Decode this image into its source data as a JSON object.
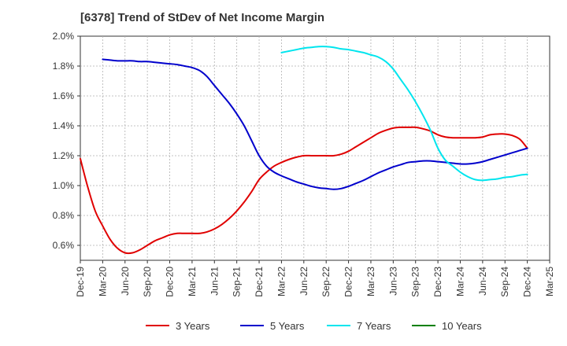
{
  "chart_data": {
    "type": "line",
    "title": "[6378]  Trend of StDev of Net Income Margin",
    "xlabel": "",
    "ylabel": "",
    "x_ticks": [
      "Dec-19",
      "Mar-20",
      "Jun-20",
      "Sep-20",
      "Dec-20",
      "Mar-21",
      "Jun-21",
      "Sep-21",
      "Dec-21",
      "Mar-22",
      "Jun-22",
      "Sep-22",
      "Dec-22",
      "Mar-23",
      "Jun-23",
      "Sep-23",
      "Dec-23",
      "Mar-24",
      "Jun-24",
      "Sep-24",
      "Dec-24",
      "Mar-25"
    ],
    "y_ticks": [
      "0.6%",
      "0.8%",
      "1.0%",
      "1.2%",
      "1.4%",
      "1.6%",
      "1.8%",
      "2.0%"
    ],
    "y_tick_values": [
      0.6,
      0.8,
      1.0,
      1.2,
      1.4,
      1.6,
      1.8,
      2.0
    ],
    "ylim": [
      0.5,
      2.0
    ],
    "grid": true,
    "legend_position": "bottom",
    "series": [
      {
        "name": "3 Years",
        "color": "#e00000",
        "x": [
          "Dec-19",
          "Jan-20",
          "Feb-20",
          "Mar-20",
          "Apr-20",
          "May-20",
          "Jun-20",
          "Jul-20",
          "Aug-20",
          "Sep-20",
          "Oct-20",
          "Nov-20",
          "Dec-20",
          "Jan-21",
          "Feb-21",
          "Mar-21",
          "Apr-21",
          "May-21",
          "Jun-21",
          "Jul-21",
          "Aug-21",
          "Sep-21",
          "Oct-21",
          "Nov-21",
          "Dec-21",
          "Jan-22",
          "Feb-22",
          "Mar-22",
          "Apr-22",
          "May-22",
          "Jun-22",
          "Jul-22",
          "Aug-22",
          "Sep-22",
          "Oct-22",
          "Nov-22",
          "Dec-22",
          "Jan-23",
          "Feb-23",
          "Mar-23",
          "Apr-23",
          "May-23",
          "Jun-23",
          "Jul-23",
          "Aug-23",
          "Sep-23",
          "Oct-23",
          "Nov-23",
          "Dec-23",
          "Jan-24",
          "Feb-24",
          "Mar-24",
          "Apr-24",
          "May-24",
          "Jun-24",
          "Jul-24",
          "Aug-24",
          "Sep-24",
          "Oct-24",
          "Nov-24",
          "Dec-24"
        ],
        "values": [
          1.18,
          0.99,
          0.83,
          0.73,
          0.64,
          0.58,
          0.55,
          0.55,
          0.57,
          0.6,
          0.63,
          0.65,
          0.67,
          0.68,
          0.68,
          0.68,
          0.68,
          0.69,
          0.71,
          0.74,
          0.78,
          0.83,
          0.89,
          0.96,
          1.04,
          1.09,
          1.13,
          1.155,
          1.175,
          1.19,
          1.2,
          1.2,
          1.2,
          1.2,
          1.2,
          1.21,
          1.23,
          1.26,
          1.29,
          1.32,
          1.35,
          1.37,
          1.385,
          1.39,
          1.39,
          1.39,
          1.38,
          1.365,
          1.34,
          1.325,
          1.32,
          1.32,
          1.32,
          1.32,
          1.325,
          1.34,
          1.345,
          1.345,
          1.335,
          1.31,
          1.25
        ]
      },
      {
        "name": "5 Years",
        "color": "#0000cc",
        "x": [
          "Mar-20",
          "Apr-20",
          "May-20",
          "Jun-20",
          "Jul-20",
          "Aug-20",
          "Sep-20",
          "Oct-20",
          "Nov-20",
          "Dec-20",
          "Jan-21",
          "Feb-21",
          "Mar-21",
          "Apr-21",
          "May-21",
          "Jun-21",
          "Jul-21",
          "Aug-21",
          "Sep-21",
          "Oct-21",
          "Nov-21",
          "Dec-21",
          "Jan-22",
          "Feb-22",
          "Mar-22",
          "Apr-22",
          "May-22",
          "Jun-22",
          "Jul-22",
          "Aug-22",
          "Sep-22",
          "Oct-22",
          "Nov-22",
          "Dec-22",
          "Jan-23",
          "Feb-23",
          "Mar-23",
          "Apr-23",
          "May-23",
          "Jun-23",
          "Jul-23",
          "Aug-23",
          "Sep-23",
          "Oct-23",
          "Nov-23",
          "Dec-23",
          "Jan-24",
          "Feb-24",
          "Mar-24",
          "Apr-24",
          "May-24",
          "Jun-24",
          "Jul-24",
          "Aug-24",
          "Sep-24",
          "Oct-24",
          "Nov-24",
          "Dec-24"
        ],
        "values": [
          1.845,
          1.84,
          1.835,
          1.835,
          1.835,
          1.83,
          1.83,
          1.825,
          1.82,
          1.815,
          1.81,
          1.8,
          1.79,
          1.77,
          1.73,
          1.67,
          1.61,
          1.55,
          1.48,
          1.4,
          1.3,
          1.2,
          1.13,
          1.09,
          1.065,
          1.045,
          1.025,
          1.01,
          0.995,
          0.985,
          0.98,
          0.975,
          0.98,
          0.995,
          1.015,
          1.035,
          1.06,
          1.085,
          1.105,
          1.125,
          1.14,
          1.155,
          1.16,
          1.165,
          1.165,
          1.16,
          1.155,
          1.15,
          1.145,
          1.145,
          1.15,
          1.16,
          1.175,
          1.19,
          1.205,
          1.22,
          1.235,
          1.25
        ]
      },
      {
        "name": "7 Years",
        "color": "#00e5ee",
        "x": [
          "Mar-22",
          "Apr-22",
          "May-22",
          "Jun-22",
          "Jul-22",
          "Aug-22",
          "Sep-22",
          "Oct-22",
          "Nov-22",
          "Dec-22",
          "Jan-23",
          "Feb-23",
          "Mar-23",
          "Apr-23",
          "May-23",
          "Jun-23",
          "Jul-23",
          "Aug-23",
          "Sep-23",
          "Oct-23",
          "Nov-23",
          "Dec-23",
          "Jan-24",
          "Feb-24",
          "Mar-24",
          "Apr-24",
          "May-24",
          "Jun-24",
          "Jul-24",
          "Aug-24",
          "Sep-24",
          "Oct-24",
          "Nov-24",
          "Dec-24"
        ],
        "values": [
          1.89,
          1.9,
          1.91,
          1.92,
          1.925,
          1.93,
          1.93,
          1.925,
          1.915,
          1.91,
          1.9,
          1.89,
          1.875,
          1.86,
          1.83,
          1.78,
          1.71,
          1.64,
          1.56,
          1.47,
          1.37,
          1.25,
          1.17,
          1.13,
          1.09,
          1.06,
          1.04,
          1.035,
          1.04,
          1.045,
          1.055,
          1.06,
          1.07,
          1.075
        ]
      },
      {
        "name": "10 Years",
        "color": "#008000",
        "x": [],
        "values": []
      }
    ]
  }
}
